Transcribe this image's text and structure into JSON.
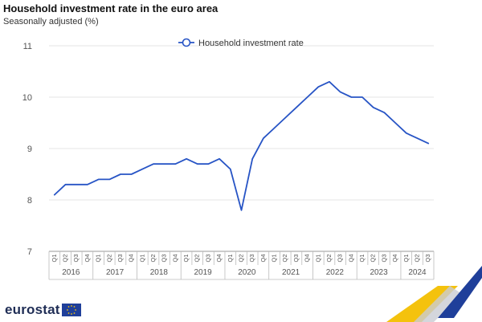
{
  "header": {
    "title": "Household investment rate in the euro area",
    "subtitle": "Seasonally adjusted (%)"
  },
  "footer": {
    "logo_text": "eurostat"
  },
  "colors": {
    "series": "#2754c5",
    "grid": "#e6e6e6",
    "axis_text": "#555555",
    "logo": "#1f2d55",
    "flag": "#1f3f9a",
    "accent_yellow": "#f4c20d"
  },
  "chart_data": {
    "type": "line",
    "title": "Household investment rate in the euro area",
    "subtitle": "Seasonally adjusted (%)",
    "ylim": [
      7,
      11
    ],
    "yticks": [
      7,
      8,
      9,
      10,
      11
    ],
    "grid": true,
    "legend_position": "top-center",
    "quarters": [
      "Q1",
      "Q2",
      "Q3",
      "Q4"
    ],
    "years": [
      "2016",
      "2017",
      "2018",
      "2019",
      "2020",
      "2021",
      "2022",
      "2023",
      "2024"
    ],
    "series": [
      {
        "name": "Household investment rate",
        "color": "#2754c5",
        "values": [
          8.1,
          8.3,
          8.3,
          8.3,
          8.4,
          8.4,
          8.5,
          8.5,
          8.6,
          8.7,
          8.7,
          8.7,
          8.8,
          8.7,
          8.7,
          8.8,
          8.6,
          7.8,
          8.8,
          9.2,
          9.4,
          9.6,
          9.8,
          10.0,
          10.2,
          10.3,
          10.1,
          10.0,
          10.0,
          9.8,
          9.7,
          9.5,
          9.3,
          9.2,
          9.1
        ]
      }
    ]
  }
}
